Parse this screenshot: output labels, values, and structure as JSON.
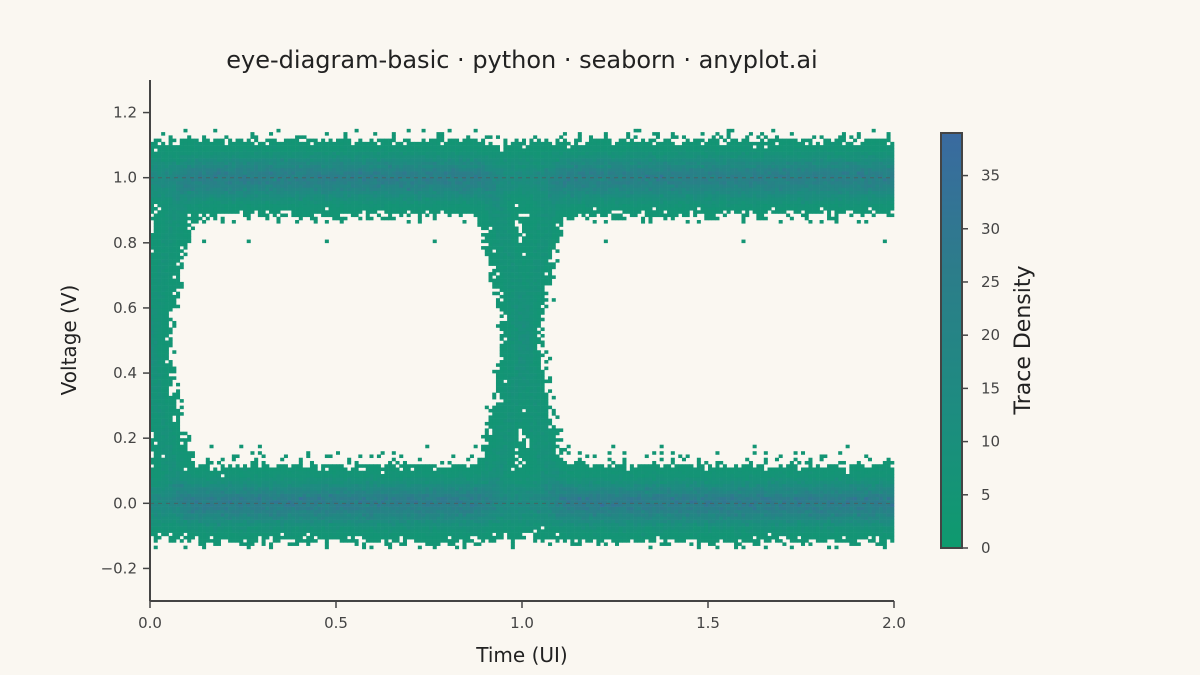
{
  "chart_data": {
    "type": "heatmap",
    "title": "eye-diagram-basic · python · seaborn · anyplot.ai",
    "xlabel": "Time (UI)",
    "ylabel": "Voltage (V)",
    "xlim": [
      0.0,
      2.0
    ],
    "ylim": [
      -0.3,
      1.3
    ],
    "x_ticks": [
      0.0,
      0.5,
      1.0,
      1.5,
      2.0
    ],
    "x_tick_labels": [
      "0.0",
      "0.5",
      "1.0",
      "1.5",
      "2.0"
    ],
    "y_ticks": [
      -0.2,
      0.0,
      0.2,
      0.4,
      0.6,
      0.8,
      1.0,
      1.2
    ],
    "y_tick_labels": [
      "−0.2",
      "0.0",
      "0.2",
      "0.4",
      "0.6",
      "0.8",
      "1.0",
      "1.2"
    ],
    "reference_levels": [
      0.0,
      1.0
    ],
    "logic_levels": {
      "low": 0.0,
      "high": 1.0
    },
    "transitions_at": [
      0.0,
      1.0,
      2.0
    ],
    "noise_sigma": 0.04,
    "data_range": {
      "x": [
        0.0,
        2.0
      ],
      "y": [
        -0.15,
        1.15
      ]
    },
    "colorbar": {
      "label": "Trace Density",
      "range": [
        0,
        39
      ],
      "ticks": [
        0,
        5,
        10,
        15,
        20,
        25,
        30,
        35
      ],
      "tick_labels": [
        "0",
        "5",
        "10",
        "15",
        "20",
        "25",
        "30",
        "35"
      ],
      "colors": [
        "#0e9a6e",
        "#1d8c80",
        "#2c7d8a",
        "#3a6aa0"
      ]
    },
    "grid": false
  }
}
